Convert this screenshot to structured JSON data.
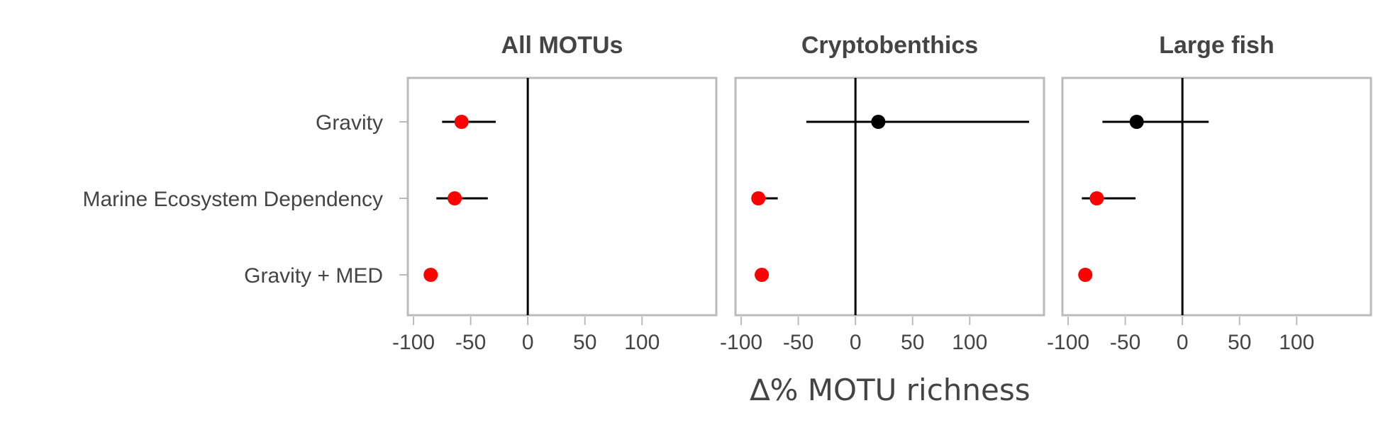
{
  "chart_data": {
    "type": "scatter",
    "subtype": "forest-plot",
    "xlabel": "∆% MOTU richness",
    "xticks": [
      -100,
      -50,
      0,
      50,
      100
    ],
    "xlim": [
      -105,
      165
    ],
    "grid": false,
    "reference_line": 0,
    "categories": [
      "Gravity",
      "Marine Ecosystem Dependency",
      "Gravity + MED"
    ],
    "colors": {
      "significant": "#ff0000",
      "non_significant": "#000000",
      "frame": "#bbbbbb",
      "text": "#444444"
    },
    "panels": [
      {
        "title": "All MOTUs",
        "points": [
          {
            "category": "Gravity",
            "estimate": -58,
            "lower": -75,
            "upper": -28,
            "significant": true
          },
          {
            "category": "Marine Ecosystem Dependency",
            "estimate": -64,
            "lower": -80,
            "upper": -35,
            "significant": true
          },
          {
            "category": "Gravity + MED",
            "estimate": -85,
            "lower": -87,
            "upper": -83,
            "significant": true
          }
        ]
      },
      {
        "title": "Cryptobenthics",
        "points": [
          {
            "category": "Gravity",
            "estimate": 20,
            "lower": -43,
            "upper": 152,
            "significant": false
          },
          {
            "category": "Marine Ecosystem Dependency",
            "estimate": -85,
            "lower": -90,
            "upper": -68,
            "significant": true
          },
          {
            "category": "Gravity + MED",
            "estimate": -82,
            "lower": -84,
            "upper": -80,
            "significant": true
          }
        ]
      },
      {
        "title": "Large fish",
        "points": [
          {
            "category": "Gravity",
            "estimate": -40,
            "lower": -70,
            "upper": 23,
            "significant": false
          },
          {
            "category": "Marine Ecosystem Dependency",
            "estimate": -75,
            "lower": -88,
            "upper": -41,
            "significant": true
          },
          {
            "category": "Gravity + MED",
            "estimate": -85,
            "lower": -87,
            "upper": -83,
            "significant": true
          }
        ]
      }
    ]
  }
}
